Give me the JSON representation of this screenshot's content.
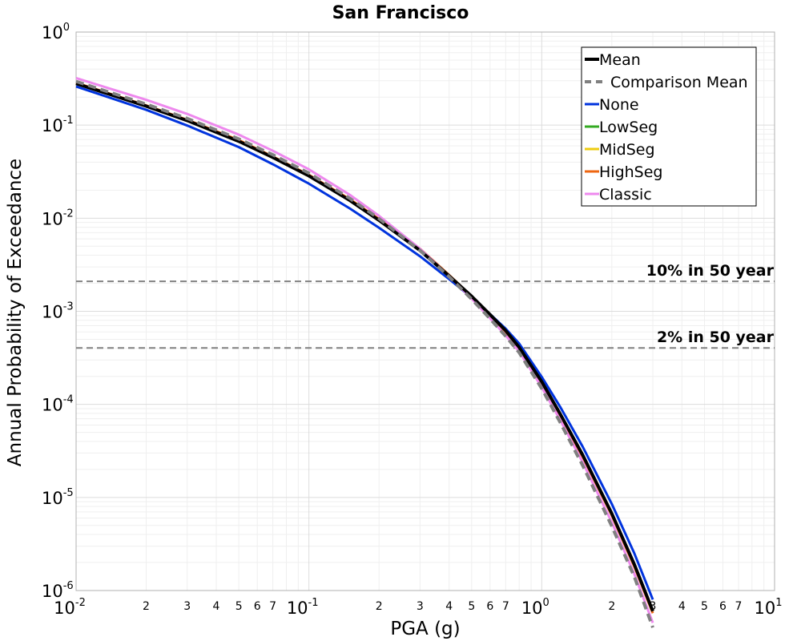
{
  "chart_data": {
    "type": "line",
    "title": "San Francisco",
    "xlabel": "PGA (g)",
    "ylabel": "Annual Probability of Exceedance",
    "x_scale": "log",
    "y_scale": "log",
    "xlim": [
      0.01,
      10
    ],
    "ylim": [
      1e-06,
      1
    ],
    "grid": true,
    "legend_position": "top-right",
    "x_major_ticks": [
      {
        "value": 0.01,
        "base": "10",
        "exp": "-2"
      },
      {
        "value": 0.1,
        "base": "10",
        "exp": "-1"
      },
      {
        "value": 1,
        "base": "10",
        "exp": "0"
      },
      {
        "value": 10,
        "base": "10",
        "exp": "1"
      }
    ],
    "x_minor_tick_labels": [
      "2",
      "3",
      "4",
      "5",
      "6",
      "7"
    ],
    "y_major_ticks": [
      {
        "value": 1,
        "base": "10",
        "exp": "0"
      },
      {
        "value": 0.1,
        "base": "10",
        "exp": "-1"
      },
      {
        "value": 0.01,
        "base": "10",
        "exp": "-2"
      },
      {
        "value": 0.001,
        "base": "10",
        "exp": "-3"
      },
      {
        "value": 0.0001,
        "base": "10",
        "exp": "-4"
      },
      {
        "value": 1e-05,
        "base": "10",
        "exp": "-5"
      },
      {
        "value": 1e-06,
        "base": "10",
        "exp": "-6"
      }
    ],
    "x": [
      0.01,
      0.02,
      0.03,
      0.05,
      0.07,
      0.1,
      0.15,
      0.2,
      0.3,
      0.4,
      0.5,
      0.6,
      0.7,
      0.8,
      1.0,
      1.2,
      1.5,
      2.0,
      2.5,
      3.0
    ],
    "series": [
      {
        "name": "Mean",
        "color": "#000000",
        "dash": "solid",
        "width": 4,
        "values": [
          0.28,
          0.16,
          0.112,
          0.067,
          0.045,
          0.0285,
          0.0155,
          0.0095,
          0.0045,
          0.0024,
          0.00145,
          0.00092,
          0.00062,
          0.00041,
          0.000175,
          7.9e-05,
          2.85e-05,
          6.7e-06,
          1.9e-06,
          6e-07
        ]
      },
      {
        "name": "Comparison Mean",
        "color": "#808080",
        "dash": "dashed",
        "width": 4,
        "values": [
          0.295,
          0.168,
          0.118,
          0.071,
          0.048,
          0.0305,
          0.0163,
          0.0099,
          0.0045,
          0.00235,
          0.00135,
          0.00083,
          0.00054,
          0.00036,
          0.000148,
          6.4e-05,
          2.2e-05,
          4.9e-06,
          1.4e-06,
          4e-07
        ]
      },
      {
        "name": "None",
        "color": "#0033dd",
        "dash": "solid",
        "width": 3,
        "values": [
          0.26,
          0.146,
          0.099,
          0.058,
          0.038,
          0.0235,
          0.0127,
          0.0079,
          0.0039,
          0.00222,
          0.00141,
          0.00093,
          0.00065,
          0.00045,
          0.000197,
          9.4e-05,
          3.5e-05,
          8.5e-06,
          2.5e-06,
          8e-07
        ]
      },
      {
        "name": "LowSeg",
        "color": "#33aa22",
        "dash": "solid",
        "width": 3,
        "values": [
          0.28,
          0.16,
          0.112,
          0.067,
          0.045,
          0.0285,
          0.0155,
          0.0095,
          0.0045,
          0.0024,
          0.00145,
          0.00092,
          0.00062,
          0.00041,
          0.000175,
          7.9e-05,
          2.85e-05,
          6.7e-06,
          1.9e-06,
          6e-07
        ]
      },
      {
        "name": "MidSeg",
        "color": "#eecc11",
        "dash": "solid",
        "width": 3,
        "values": [
          0.28,
          0.16,
          0.112,
          0.067,
          0.045,
          0.0285,
          0.0155,
          0.0095,
          0.0045,
          0.0024,
          0.00145,
          0.00092,
          0.00062,
          0.00041,
          0.000175,
          7.9e-05,
          2.85e-05,
          6.7e-06,
          1.9e-06,
          6e-07
        ]
      },
      {
        "name": "HighSeg",
        "color": "#ee6611",
        "dash": "solid",
        "width": 3,
        "values": [
          0.285,
          0.163,
          0.114,
          0.069,
          0.046,
          0.0292,
          0.016,
          0.0098,
          0.0047,
          0.00245,
          0.00145,
          0.00091,
          0.0006,
          0.0004,
          0.00017,
          7.6e-05,
          2.72e-05,
          6.4e-06,
          1.8e-06,
          5.7e-07
        ]
      },
      {
        "name": "Classic",
        "color": "#ee88ee",
        "dash": "solid",
        "width": 3,
        "values": [
          0.32,
          0.187,
          0.132,
          0.079,
          0.053,
          0.0335,
          0.0178,
          0.0106,
          0.0047,
          0.0024,
          0.00137,
          0.00084,
          0.00055,
          0.00037,
          0.000153,
          6.8e-05,
          2.38e-05,
          5.4e-06,
          1.5e-06,
          4.5e-07
        ]
      }
    ],
    "reference_lines": [
      {
        "label": "10% in 50 year",
        "y": 0.0021,
        "color": "#808080"
      },
      {
        "label": "2% in 50 year",
        "y": 0.000404,
        "color": "#808080"
      }
    ]
  }
}
